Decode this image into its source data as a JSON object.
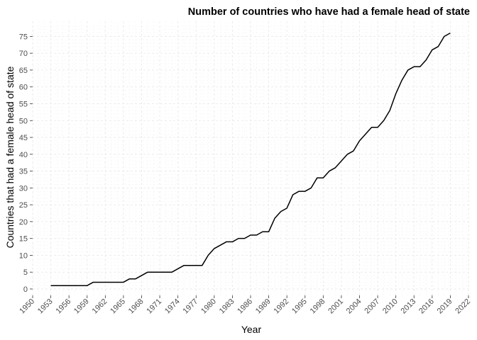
{
  "chart_data": {
    "type": "line",
    "title": "Number of countries who have had a female head of state",
    "xlabel": "Year",
    "ylabel": "Countries that had a female head of state",
    "xlim": [
      1950,
      2022
    ],
    "ylim": [
      0,
      75
    ],
    "x_ticks": [
      1950,
      1953,
      1956,
      1959,
      1962,
      1965,
      1968,
      1971,
      1974,
      1977,
      1980,
      1983,
      1986,
      1989,
      1992,
      1995,
      1998,
      2001,
      2004,
      2007,
      2010,
      2013,
      2016,
      2019,
      2022
    ],
    "y_ticks": [
      0,
      5,
      10,
      15,
      20,
      25,
      30,
      35,
      40,
      45,
      50,
      55,
      60,
      65,
      70,
      75
    ],
    "grid": true,
    "series": [
      {
        "x": [
          1953,
          1954,
          1955,
          1956,
          1957,
          1958,
          1959,
          1960,
          1961,
          1962,
          1963,
          1964,
          1965,
          1966,
          1967,
          1968,
          1969,
          1970,
          1971,
          1972,
          1973,
          1974,
          1975,
          1976,
          1977,
          1978,
          1979,
          1980,
          1981,
          1982,
          1983,
          1984,
          1985,
          1986,
          1987,
          1988,
          1989,
          1990,
          1991,
          1992,
          1993,
          1994,
          1995,
          1996,
          1997,
          1998,
          1999,
          2000,
          2001,
          2002,
          2003,
          2004,
          2005,
          2006,
          2007,
          2008,
          2009,
          2010,
          2011,
          2012,
          2013,
          2014,
          2015,
          2016,
          2017,
          2018,
          2019
        ],
        "y": [
          1,
          1,
          1,
          1,
          1,
          1,
          1,
          2,
          2,
          2,
          2,
          2,
          2,
          3,
          3,
          4,
          5,
          5,
          5,
          5,
          5,
          6,
          7,
          7,
          7,
          7,
          10,
          12,
          13,
          14,
          14,
          15,
          15,
          16,
          16,
          17,
          17,
          21,
          23,
          24,
          28,
          29,
          29,
          30,
          33,
          33,
          35,
          36,
          38,
          40,
          41,
          44,
          46,
          48,
          48,
          50,
          53,
          58,
          62,
          65,
          66,
          66,
          68,
          71,
          72,
          75,
          76
        ],
        "color": "#000000"
      }
    ]
  }
}
